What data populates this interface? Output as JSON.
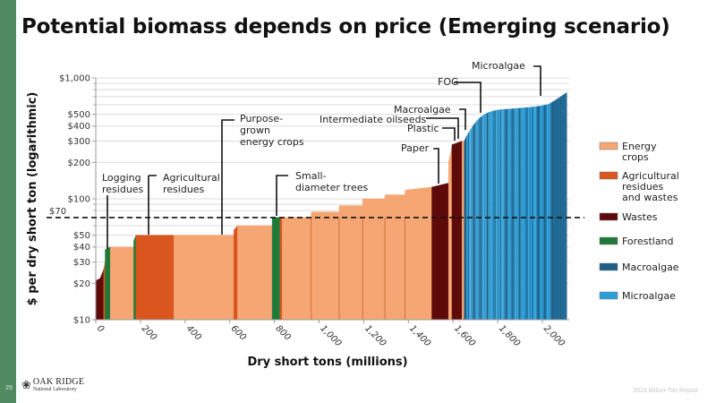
{
  "slide": {
    "title": "Potential biomass depends on price (Emerging scenario)",
    "page_number": "29",
    "footer": "2023 Billion-Ton Report",
    "logo_main": "OAK RIDGE",
    "logo_sub": "National Laboratory",
    "logo_icon": "oak-leaf-icon"
  },
  "chart_data": {
    "type": "area",
    "title": "Potential biomass depends on price (Emerging scenario)",
    "xlabel": "Dry short tons (millions)",
    "ylabel": "$ per dry short ton (logarithmic)",
    "yscale": "log",
    "ylim": [
      10,
      1000
    ],
    "xlim": [
      0,
      2100
    ],
    "x_ticks": [
      0,
      200,
      400,
      600,
      800,
      1000,
      1200,
      1400,
      1600,
      1800,
      2000
    ],
    "x_tick_labels": [
      "0",
      "200",
      "400",
      "600",
      "800",
      "1,000",
      "1,200",
      "1,400",
      "1,600",
      "1,800",
      "2,000"
    ],
    "y_ticks": [
      10,
      20,
      30,
      40,
      50,
      100,
      200,
      300,
      400,
      500,
      1000
    ],
    "y_tick_labels": [
      "$10",
      "$20",
      "$30",
      "$40",
      "$50",
      "$100",
      "$200",
      "$300",
      "$400",
      "$500",
      "$1,000"
    ],
    "y_gridlines": [
      20,
      30,
      40,
      50,
      60,
      70,
      80,
      90,
      100,
      200,
      300,
      400,
      500,
      600,
      700,
      800,
      900,
      1000
    ],
    "grid": true,
    "reference_line": {
      "value": 70,
      "label": "$70",
      "style": "dashed"
    },
    "legend": {
      "placement": "right",
      "entries": [
        {
          "label": "Energy crops",
          "color": "#f5a673"
        },
        {
          "label": "Agricultural residues and wastes",
          "color": "#d9571f"
        },
        {
          "label": "Wastes",
          "color": "#5e0a0a"
        },
        {
          "label": "Forestland",
          "color": "#1f7a3a"
        },
        {
          "label": "Macroalgae",
          "color": "#1f5f86"
        },
        {
          "label": "Microalgae",
          "color": "#2d9fd6"
        }
      ]
    },
    "category_colors": {
      "energy": "#f5a673",
      "agri": "#d9571f",
      "waste": "#5e0a0a",
      "forest": "#1f7a3a",
      "macro": "#1f5f86",
      "micro": "#2d9fd6"
    },
    "segments": [
      {
        "x0": 0,
        "x1": 20,
        "y0": 21,
        "y1": 22,
        "cat": "waste"
      },
      {
        "x0": 20,
        "x1": 35,
        "y0": 22,
        "y1": 26,
        "cat": "waste"
      },
      {
        "x0": 35,
        "x1": 42,
        "y0": 26,
        "y1": 30,
        "cat": "agri"
      },
      {
        "x0": 42,
        "x1": 65,
        "y0": 38,
        "y1": 40,
        "cat": "forest"
      },
      {
        "x0": 65,
        "x1": 170,
        "y0": 40,
        "y1": 40,
        "cat": "energy"
      },
      {
        "x0": 170,
        "x1": 180,
        "y0": 45,
        "y1": 50,
        "cat": "forest"
      },
      {
        "x0": 180,
        "x1": 350,
        "y0": 50,
        "y1": 50,
        "cat": "agri"
      },
      {
        "x0": 350,
        "x1": 618,
        "y0": 50,
        "y1": 50,
        "cat": "energy"
      },
      {
        "x0": 618,
        "x1": 635,
        "y0": 55,
        "y1": 60,
        "cat": "agri"
      },
      {
        "x0": 635,
        "x1": 790,
        "y0": 60,
        "y1": 60,
        "cat": "energy"
      },
      {
        "x0": 790,
        "x1": 825,
        "y0": 70,
        "y1": 70,
        "cat": "forest"
      },
      {
        "x0": 825,
        "x1": 835,
        "y0": 70,
        "y1": 70,
        "cat": "agri"
      },
      {
        "x0": 835,
        "x1": 965,
        "y0": 70,
        "y1": 70,
        "cat": "energy"
      },
      {
        "x0": 965,
        "x1": 1090,
        "y0": 78,
        "y1": 78,
        "cat": "energy"
      },
      {
        "x0": 1090,
        "x1": 1195,
        "y0": 88,
        "y1": 88,
        "cat": "energy"
      },
      {
        "x0": 1195,
        "x1": 1295,
        "y0": 100,
        "y1": 100,
        "cat": "energy"
      },
      {
        "x0": 1295,
        "x1": 1385,
        "y0": 108,
        "y1": 108,
        "cat": "energy"
      },
      {
        "x0": 1385,
        "x1": 1505,
        "y0": 118,
        "y1": 125,
        "cat": "energy"
      },
      {
        "x0": 1505,
        "x1": 1580,
        "y0": 125,
        "y1": 135,
        "cat": "waste"
      },
      {
        "x0": 1580,
        "x1": 1595,
        "y0": 200,
        "y1": 270,
        "cat": "energy"
      },
      {
        "x0": 1595,
        "x1": 1640,
        "y0": 280,
        "y1": 300,
        "cat": "waste"
      },
      {
        "x0": 1640,
        "x1": 1650,
        "y0": 300,
        "y1": 300,
        "cat": "energy"
      },
      {
        "x0": 1650,
        "x1": 1660,
        "y0": 300,
        "y1": 330,
        "cat": "macro"
      }
    ],
    "algae_curve": {
      "x": [
        1660,
        1680,
        1700,
        1720,
        1740,
        1760,
        1780,
        1800,
        1850,
        1900,
        1950,
        2000,
        2030,
        2060,
        2090,
        2110
      ],
      "y": [
        330,
        380,
        430,
        470,
        500,
        520,
        535,
        545,
        555,
        565,
        575,
        590,
        610,
        660,
        720,
        760
      ]
    },
    "annotations": [
      {
        "text": "Logging residues",
        "x": 55,
        "y": 40
      },
      {
        "text": "Agricultural residues",
        "x": 230,
        "y": 50
      },
      {
        "text": "Purpose-grown energy crops",
        "x": 560,
        "y": 50
      },
      {
        "text": "Small-diameter trees",
        "x": 805,
        "y": 70
      },
      {
        "text": "Paper",
        "x": 1565,
        "y": 135
      },
      {
        "text": "Plastic",
        "x": 1630,
        "y": 300
      },
      {
        "text": "Intermediate oilseeds",
        "x": 1645,
        "y": 300
      },
      {
        "text": "Macroalgae",
        "x": 1660,
        "y": 330
      },
      {
        "text": "FOG",
        "x": 1720,
        "y": 470
      },
      {
        "text": "Microalgae",
        "x": 2000,
        "y": 590
      }
    ]
  }
}
